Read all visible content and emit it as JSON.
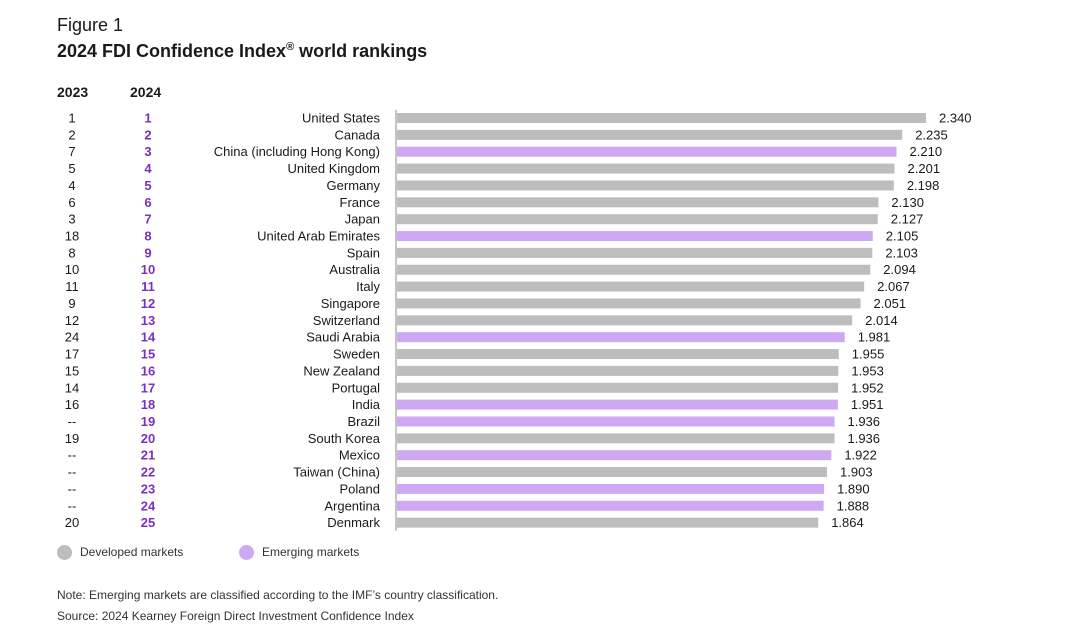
{
  "figure": {
    "label": "Figure 1",
    "title": "2024 FDI Confidence Index",
    "title_mark": "®",
    "title_suffix": " world rankings"
  },
  "columns": {
    "prev_year": "2023",
    "curr_year": "2024"
  },
  "legend": {
    "developed": {
      "label": "Developed markets",
      "color": "#bdbdbd"
    },
    "emerging": {
      "label": "Emerging markets",
      "color": "#cfa8f3"
    }
  },
  "colors": {
    "developed_bar": "#bdbdbd",
    "emerging_bar": "#cfa8f3",
    "rank_2024": "#7b2fbf",
    "axis": "#888888"
  },
  "footer": {
    "note": "Note: Emerging markets are classified according to the IMF’s country classification.",
    "source": "Source: 2024 Kearney Foreign Direct Investment Confidence Index"
  },
  "chart_data": {
    "type": "bar",
    "orientation": "horizontal",
    "xlim": [
      0,
      2.34
    ],
    "grid": false,
    "legend_position": "bottom-left",
    "categories": [
      "United States",
      "Canada",
      "China (including Hong Kong)",
      "United Kingdom",
      "Germany",
      "France",
      "Japan",
      "United Arab Emirates",
      "Spain",
      "Australia",
      "Italy",
      "Singapore",
      "Switzerland",
      "Saudi Arabia",
      "Sweden",
      "New Zealand",
      "Portugal",
      "India",
      "Brazil",
      "South Korea",
      "Mexico",
      "Taiwan (China)",
      "Poland",
      "Argentina",
      "Denmark"
    ],
    "values": [
      2.34,
      2.235,
      2.21,
      2.201,
      2.198,
      2.13,
      2.127,
      2.105,
      2.103,
      2.094,
      2.067,
      2.051,
      2.014,
      1.981,
      1.955,
      1.953,
      1.952,
      1.951,
      1.936,
      1.936,
      1.922,
      1.903,
      1.89,
      1.888,
      1.864
    ],
    "value_labels": [
      "2.340",
      "2.235",
      "2.210",
      "2.201",
      "2.198",
      "2.130",
      "2.127",
      "2.105",
      "2.103",
      "2.094",
      "2.067",
      "2.051",
      "2.014",
      "1.981",
      "1.955",
      "1.953",
      "1.952",
      "1.951",
      "1.936",
      "1.936",
      "1.922",
      "1.903",
      "1.890",
      "1.888",
      "1.864"
    ],
    "market": [
      "developed",
      "developed",
      "emerging",
      "developed",
      "developed",
      "developed",
      "developed",
      "emerging",
      "developed",
      "developed",
      "developed",
      "developed",
      "developed",
      "emerging",
      "developed",
      "developed",
      "developed",
      "emerging",
      "emerging",
      "developed",
      "emerging",
      "developed",
      "emerging",
      "emerging",
      "developed"
    ],
    "rank_2023": [
      "1",
      "2",
      "7",
      "5",
      "4",
      "6",
      "3",
      "18",
      "8",
      "10",
      "11",
      "9",
      "12",
      "24",
      "17",
      "15",
      "14",
      "16",
      "--",
      "19",
      "--",
      "--",
      "--",
      "--",
      "20"
    ],
    "rank_2024": [
      "1",
      "2",
      "3",
      "4",
      "5",
      "6",
      "7",
      "8",
      "9",
      "10",
      "11",
      "12",
      "13",
      "14",
      "15",
      "16",
      "17",
      "18",
      "19",
      "20",
      "21",
      "22",
      "23",
      "24",
      "25"
    ]
  }
}
